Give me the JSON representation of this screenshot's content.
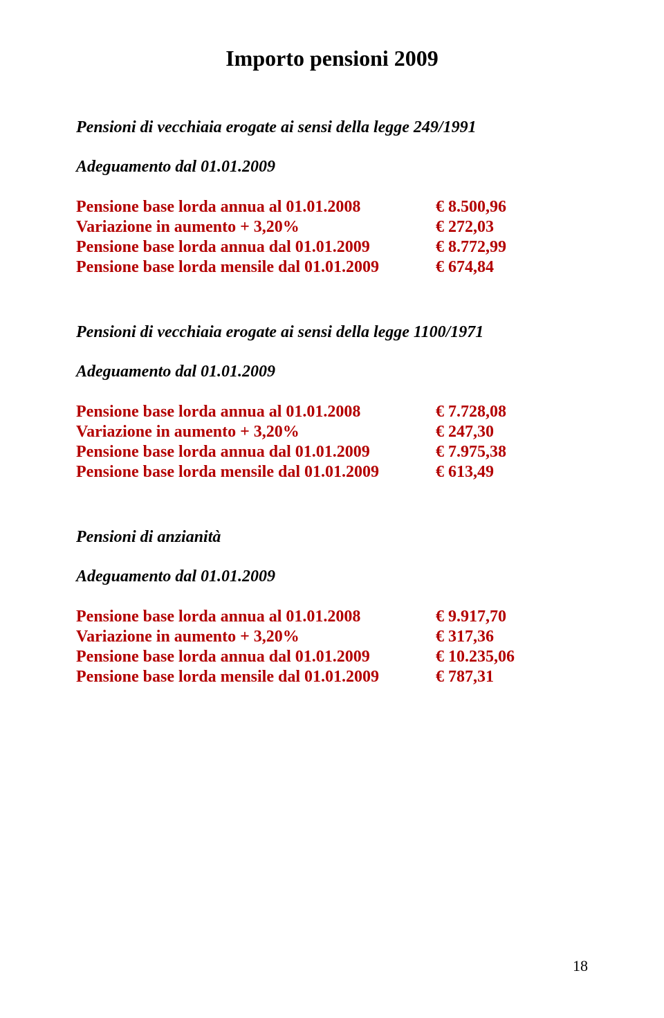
{
  "colors": {
    "heading": "#000000",
    "row_label": "#b30000",
    "row_value": "#b30000",
    "background": "#ffffff"
  },
  "title": "Importo pensioni 2009",
  "page_number": "18",
  "sections": [
    {
      "heading": "Pensioni di vecchiaia erogate ai sensi della legge 249/1991",
      "sub_heading": "Adeguamento dal 01.01.2009",
      "rows": [
        {
          "label": "Pensione base lorda annua al 01.01.2008",
          "value": "€ 8.500,96"
        },
        {
          "label": "Variazione in aumento + 3,20%",
          "value": "€ 272,03"
        },
        {
          "label": "Pensione base lorda annua dal 01.01.2009",
          "value": "€ 8.772,99"
        },
        {
          "label": "Pensione base lorda mensile dal 01.01.2009",
          "value": "€ 674,84"
        }
      ]
    },
    {
      "heading": "Pensioni di vecchiaia erogate ai sensi della legge 1100/1971",
      "sub_heading": "Adeguamento dal 01.01.2009",
      "rows": [
        {
          "label": "Pensione base lorda annua al 01.01.2008",
          "value": "€ 7.728,08"
        },
        {
          "label": "Variazione in aumento + 3,20%",
          "value": "€ 247,30"
        },
        {
          "label": "Pensione base lorda annua dal 01.01.2009",
          "value": "€ 7.975,38"
        },
        {
          "label": "Pensione base lorda mensile dal 01.01.2009",
          "value": "€ 613,49"
        }
      ]
    },
    {
      "heading": "Pensioni di anzianità",
      "sub_heading": "Adeguamento dal 01.01.2009",
      "rows": [
        {
          "label": "Pensione base lorda annua al 01.01.2008",
          "value": "€ 9.917,70"
        },
        {
          "label": "Variazione in aumento + 3,20%",
          "value": "€ 317,36"
        },
        {
          "label": "Pensione base lorda annua dal 01.01.2009",
          "value": "€ 10.235,06"
        },
        {
          "label": "Pensione base lorda mensile dal 01.01.2009",
          "value": "€ 787,31"
        }
      ]
    }
  ]
}
